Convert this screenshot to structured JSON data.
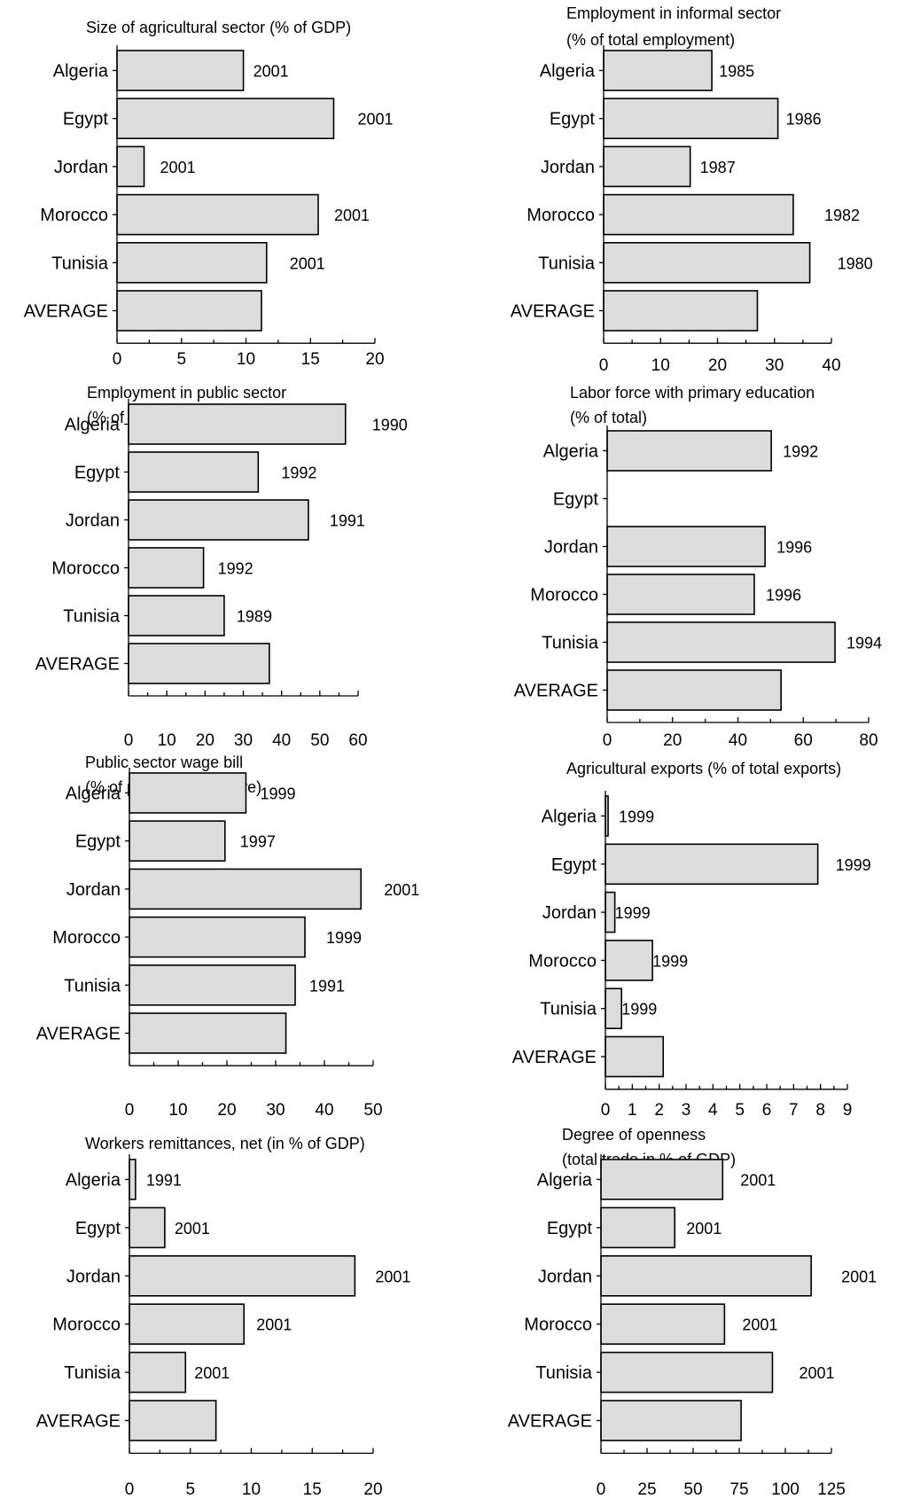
{
  "chart_data": [
    {
      "type": "bar",
      "orientation": "horizontal",
      "title": [
        "Size of agricultural  sector (% of GDP)"
      ],
      "categories": [
        "Algeria",
        "Egypt",
        "Jordan",
        "Morocco",
        "Tunisia",
        "AVERAGE"
      ],
      "values": [
        9.8,
        16.8,
        2.1,
        15.6,
        11.6,
        11.2
      ],
      "year_labels": [
        "2001",
        "2001",
        "2001",
        "2001",
        "2001",
        ""
      ],
      "xlim": [
        0,
        20
      ],
      "xticks": [
        0,
        5,
        10,
        15,
        20
      ],
      "xticklabels": [
        "0",
        "5",
        "10",
        "15",
        "20"
      ],
      "grid": false
    },
    {
      "type": "bar",
      "orientation": "horizontal",
      "title": [
        "Employment in informal sector",
        "(% of total employment)"
      ],
      "categories": [
        "Algeria",
        "Egypt",
        "Jordan",
        "Morocco",
        "Tunisia",
        "AVERAGE"
      ],
      "values": [
        19,
        30.6,
        15.2,
        33.3,
        36.2,
        27
      ],
      "year_labels": [
        "1985",
        "1986",
        "1987",
        "1982",
        "1980",
        ""
      ],
      "xlim": [
        0,
        40
      ],
      "xticks": [
        0,
        10,
        20,
        30,
        40
      ],
      "xticklabels": [
        "0",
        "10",
        "20",
        "30",
        "40"
      ],
      "grid": false
    },
    {
      "type": "bar",
      "orientation": "horizontal",
      "title": [
        "Employment in public sector",
        "(% of total employment)"
      ],
      "categories": [
        "Algeria",
        "Egypt",
        "Jordan",
        "Morocco",
        "Tunisia",
        "AVERAGE"
      ],
      "values": [
        56.7,
        33.9,
        47,
        19.6,
        25,
        36.8
      ],
      "year_labels": [
        "1990",
        "1992",
        "1991",
        "1992",
        "1989",
        ""
      ],
      "xlim": [
        0,
        60
      ],
      "xticks": [
        0,
        10,
        20,
        30,
        40,
        50,
        60
      ],
      "xticklabels": [
        "0",
        "10",
        "20",
        "30",
        "40",
        "50",
        "60"
      ],
      "grid": false
    },
    {
      "type": "bar",
      "orientation": "horizontal",
      "title": [
        "Labor force with primary education",
        "(% of total)"
      ],
      "categories": [
        "Algeria",
        "Egypt",
        "Jordan",
        "Morocco",
        "Tunisia",
        "AVERAGE"
      ],
      "values": [
        50.2,
        null,
        48.3,
        45,
        69.7,
        53.2
      ],
      "year_labels": [
        "1992",
        "",
        "1996",
        "1996",
        "1994",
        ""
      ],
      "xlim": [
        0,
        80
      ],
      "xticks": [
        0,
        20,
        40,
        60,
        80
      ],
      "xticklabels": [
        "0",
        "20",
        "40",
        "60",
        "80"
      ],
      "grid": false
    },
    {
      "type": "bar",
      "orientation": "horizontal",
      "title": [
        "Public sector wage bill",
        "(% of public expenditure)"
      ],
      "categories": [
        "Algeria",
        "Egypt",
        "Jordan",
        "Morocco",
        "Tunisia",
        "AVERAGE"
      ],
      "values": [
        23.9,
        19.6,
        47.5,
        36,
        34,
        32.1
      ],
      "year_labels": [
        "1999",
        "1997",
        "2001",
        "1999",
        "1991",
        ""
      ],
      "xlim": [
        0,
        50
      ],
      "xticks": [
        0,
        10,
        20,
        30,
        40,
        50
      ],
      "xticklabels": [
        "0",
        "10",
        "20",
        "30",
        "40",
        "50"
      ],
      "grid": false
    },
    {
      "type": "bar",
      "orientation": "horizontal",
      "title": [
        "Agricultural exports (% of total exports)"
      ],
      "categories": [
        "Algeria",
        "Egypt",
        "Jordan",
        "Morocco",
        "Tunisia",
        "AVERAGE"
      ],
      "values": [
        0.1,
        7.9,
        0.35,
        1.75,
        0.6,
        2.15
      ],
      "year_labels": [
        "1999",
        "1999",
        "1999",
        "1999",
        "1999",
        ""
      ],
      "xlim": [
        0,
        9
      ],
      "xticks": [
        0,
        1,
        2,
        3,
        4,
        5,
        6,
        7,
        8,
        9
      ],
      "xticklabels": [
        "0",
        "1",
        "2",
        "3",
        "4",
        "5",
        "6",
        "7",
        "8",
        "9"
      ],
      "grid": false
    },
    {
      "type": "bar",
      "orientation": "horizontal",
      "title": [
        "Workers remittances, net (in % of GDP)"
      ],
      "categories": [
        "Algeria",
        "Egypt",
        "Jordan",
        "Morocco",
        "Tunisia",
        "AVERAGE"
      ],
      "values": [
        0.5,
        2.9,
        18.5,
        9.4,
        4.6,
        7.1
      ],
      "year_labels": [
        "1991",
        "2001",
        "2001",
        "2001",
        "2001",
        ""
      ],
      "xlim": [
        0,
        20
      ],
      "xticks": [
        0,
        5,
        10,
        15,
        20
      ],
      "xticklabels": [
        "0",
        "5",
        "10",
        "15",
        "20"
      ],
      "grid": false
    },
    {
      "type": "bar",
      "orientation": "horizontal",
      "title": [
        "Degree of openness",
        "(total trade in % of GDP)"
      ],
      "categories": [
        "Algeria",
        "Egypt",
        "Jordan",
        "Morocco",
        "Tunisia",
        "AVERAGE"
      ],
      "values": [
        66,
        40,
        114,
        67,
        93,
        76
      ],
      "year_labels": [
        "2001",
        "2001",
        "2001",
        "2001",
        "2001",
        ""
      ],
      "xlim": [
        0,
        125
      ],
      "xticks": [
        0,
        25,
        50,
        75,
        100,
        125
      ],
      "xticklabels": [
        "0",
        "25",
        "50",
        "75",
        "100",
        "125"
      ],
      "grid": false
    }
  ],
  "colors": {
    "bar_fill": "#dcdcdc",
    "bar_stroke": "#000000",
    "text": "#000000"
  }
}
